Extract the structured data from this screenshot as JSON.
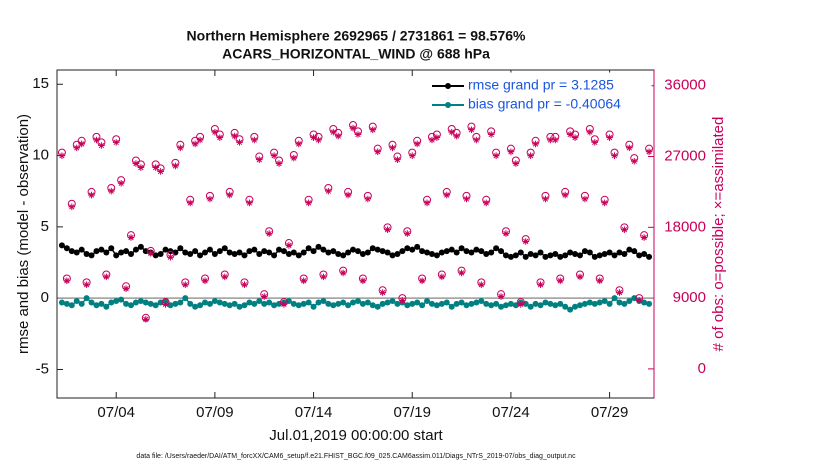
{
  "chart_data": {
    "type": "line",
    "title": "Northern Hemisphere 2692965 / 2731861 = 98.576%",
    "subtitle": "ACARS_HORIZONTAL_WIND @ 688 hPa",
    "xlabel": "Jul.01,2019 00:00:00 start",
    "ylabel": "rmse and bias (model - observation)",
    "y2label": "# of obs: o=possible; ×=assimilated",
    "footnote": "data file: /Users/raeder/DAI/ATM_forcXX/CAM6_setup/f.e21.FHIST_BGC.f09_025.CAM6assim.011/Diags_NTrS_2019-07/obs_diag_output.nc",
    "xlim": [
      0,
      30.25
    ],
    "xticks": [
      {
        "value": 3,
        "label": "07/04"
      },
      {
        "value": 8,
        "label": "07/09"
      },
      {
        "value": 13,
        "label": "07/14"
      },
      {
        "value": 18,
        "label": "07/19"
      },
      {
        "value": 23,
        "label": "07/24"
      },
      {
        "value": 28,
        "label": "07/29"
      }
    ],
    "ylim": [
      -7,
      16
    ],
    "yticks": [
      -5,
      0,
      5,
      10,
      15
    ],
    "y2lim": [
      -3700,
      38000
    ],
    "y2ticks": [
      0,
      9000,
      18000,
      27000,
      36000
    ],
    "y2color": "#c8005a",
    "zero_line": true,
    "legend": "upper right",
    "x": [
      0.25,
      0.5,
      0.75,
      1,
      1.25,
      1.5,
      1.75,
      2,
      2.25,
      2.5,
      2.75,
      3,
      3.25,
      3.5,
      3.75,
      4,
      4.25,
      4.5,
      4.75,
      5,
      5.25,
      5.5,
      5.75,
      6,
      6.25,
      6.5,
      6.75,
      7,
      7.25,
      7.5,
      7.75,
      8,
      8.25,
      8.5,
      8.75,
      9,
      9.25,
      9.5,
      9.75,
      10,
      10.25,
      10.5,
      10.75,
      11,
      11.25,
      11.5,
      11.75,
      12,
      12.25,
      12.5,
      12.75,
      13,
      13.25,
      13.5,
      13.75,
      14,
      14.25,
      14.5,
      14.75,
      15,
      15.25,
      15.5,
      15.75,
      16,
      16.25,
      16.5,
      16.75,
      17,
      17.25,
      17.5,
      17.75,
      18,
      18.25,
      18.5,
      18.75,
      19,
      19.25,
      19.5,
      19.75,
      20,
      20.25,
      20.5,
      20.75,
      21,
      21.25,
      21.5,
      21.75,
      22,
      22.25,
      22.5,
      22.75,
      23,
      23.25,
      23.5,
      23.75,
      24,
      24.25,
      24.5,
      24.75,
      25,
      25.25,
      25.5,
      25.75,
      26,
      26.25,
      26.5,
      26.75,
      27,
      27.25,
      27.5,
      27.75,
      28,
      28.25,
      28.5,
      28.75,
      29,
      29.25,
      29.5,
      29.75,
      30
    ],
    "series": [
      {
        "name": "rmse grand pr = 3.1285",
        "color": "#000000",
        "marker": "dot",
        "line": true,
        "legend": true,
        "values": [
          3.7,
          3.5,
          3.3,
          3.2,
          3.4,
          3.1,
          3.0,
          3.3,
          3.4,
          3.2,
          3.5,
          3.0,
          3.2,
          3.3,
          3.1,
          3.4,
          3.6,
          3.3,
          3.2,
          3.0,
          3.1,
          3.4,
          3.3,
          3.2,
          3.5,
          3.2,
          3.1,
          3.3,
          3.0,
          3.2,
          3.4,
          3.1,
          3.3,
          3.5,
          3.2,
          3.1,
          3.2,
          3.0,
          3.3,
          3.4,
          3.1,
          3.3,
          3.2,
          3.0,
          3.4,
          3.3,
          3.1,
          3.2,
          3.0,
          3.2,
          3.5,
          3.3,
          3.6,
          3.4,
          3.2,
          3.3,
          3.1,
          3.0,
          3.2,
          3.4,
          3.3,
          3.1,
          3.2,
          3.5,
          3.4,
          3.3,
          3.2,
          3.0,
          3.1,
          3.3,
          3.5,
          3.4,
          3.6,
          3.3,
          3.2,
          3.1,
          3.0,
          3.2,
          3.3,
          3.4,
          3.2,
          3.5,
          3.3,
          3.2,
          3.4,
          3.3,
          3.1,
          3.2,
          3.5,
          3.3,
          3.0,
          2.9,
          3.0,
          3.2,
          2.9,
          3.1,
          3.0,
          3.2,
          2.9,
          3.0,
          3.1,
          2.9,
          3.0,
          3.2,
          3.1,
          3.0,
          3.3,
          3.2,
          2.9,
          3.0,
          3.1,
          3.2,
          3.0,
          3.2,
          3.1,
          3.4,
          3.3,
          3.0,
          3.1,
          2.9
        ]
      },
      {
        "name": "bias grand pr = -0.40064",
        "color": "#008080",
        "marker": "dot",
        "line": true,
        "legend": true,
        "values": [
          -0.3,
          -0.4,
          -0.5,
          -0.2,
          -0.4,
          0.0,
          -0.3,
          -0.5,
          -0.4,
          -0.6,
          -0.3,
          -0.2,
          -0.1,
          -0.4,
          -0.5,
          -0.3,
          -0.2,
          -0.3,
          -0.4,
          -0.5,
          -0.3,
          -0.2,
          -0.5,
          -0.4,
          -0.3,
          0.0,
          -0.4,
          -0.6,
          -0.5,
          -0.3,
          -0.4,
          -0.2,
          -0.3,
          -0.4,
          -0.5,
          -0.4,
          -0.6,
          -0.5,
          -0.3,
          -0.4,
          -0.2,
          -0.4,
          -0.3,
          -0.5,
          -0.4,
          -0.3,
          -0.2,
          -0.4,
          -0.5,
          -0.4,
          -0.3,
          -0.6,
          -0.3,
          -0.2,
          -0.4,
          -0.5,
          -0.4,
          -0.3,
          -0.5,
          -0.3,
          -0.2,
          -0.4,
          -0.3,
          -0.5,
          -0.6,
          -0.4,
          -0.3,
          -0.2,
          -0.4,
          -0.3,
          -0.5,
          -0.4,
          -0.3,
          -0.5,
          -0.2,
          -0.4,
          -0.5,
          -0.4,
          -0.3,
          -0.6,
          -0.4,
          -0.3,
          -0.5,
          -0.4,
          -0.3,
          -0.2,
          -0.4,
          -0.5,
          -0.4,
          -0.6,
          -0.5,
          -0.4,
          -0.5,
          -0.3,
          -0.4,
          -0.6,
          -0.4,
          -0.5,
          -0.3,
          -0.4,
          -0.5,
          -0.4,
          -0.6,
          -0.8,
          -0.6,
          -0.5,
          -0.4,
          -0.3,
          -0.4,
          -0.3,
          -0.2,
          -0.4,
          0.0,
          -0.3,
          -0.4,
          -0.2,
          0.0,
          -0.2,
          -0.3,
          -0.4
        ]
      },
      {
        "name": "possible",
        "color": "#c8005a",
        "marker": "circle",
        "line": false,
        "legend": false,
        "axis": "y2",
        "values": [
          27500,
          11500,
          21000,
          28500,
          29000,
          11000,
          22500,
          29500,
          28800,
          12000,
          23000,
          29200,
          24000,
          10500,
          17000,
          26500,
          26000,
          6500,
          15000,
          26000,
          25500,
          8500,
          14500,
          26200,
          28500,
          11000,
          21500,
          29000,
          29500,
          11500,
          22000,
          30500,
          29800,
          12000,
          22500,
          30000,
          29200,
          11000,
          21500,
          29500,
          27000,
          9500,
          17500,
          27500,
          26500,
          8500,
          16000,
          27200,
          29000,
          11500,
          21500,
          29800,
          29500,
          12000,
          23000,
          30500,
          30000,
          12500,
          22500,
          31000,
          30200,
          11500,
          22000,
          30800,
          28000,
          10000,
          18000,
          28500,
          27000,
          9000,
          17500,
          27500,
          29000,
          11500,
          21500,
          29500,
          29800,
          12000,
          22500,
          30500,
          30000,
          12500,
          22000,
          30800,
          29500,
          11000,
          21500,
          30200,
          27500,
          9500,
          17500,
          28000,
          26500,
          8500,
          16500,
          27500,
          29000,
          11000,
          22000,
          29500,
          29500,
          11500,
          22500,
          30200,
          29800,
          12000,
          22000,
          30500,
          29200,
          11500,
          21500,
          29800,
          27500,
          10000,
          18000,
          28500,
          26800,
          9000,
          17000,
          28000
        ]
      },
      {
        "name": "assimilated",
        "color": "#c8005a",
        "marker": "asterisk",
        "line": false,
        "legend": false,
        "axis": "y2",
        "values": [
          27100,
          11200,
          20600,
          28100,
          28600,
          10700,
          22100,
          29100,
          28400,
          11700,
          22600,
          28800,
          23600,
          10200,
          16700,
          26100,
          25600,
          6300,
          14700,
          25600,
          25100,
          8200,
          14200,
          25800,
          28100,
          10700,
          21100,
          28600,
          29100,
          11200,
          21600,
          30100,
          29400,
          11700,
          22100,
          29600,
          28800,
          10700,
          21100,
          29100,
          26600,
          9200,
          17200,
          27100,
          26100,
          8200,
          15700,
          26800,
          28600,
          11200,
          21100,
          29400,
          29100,
          11700,
          22600,
          30100,
          29600,
          12200,
          22100,
          30600,
          29800,
          11200,
          21600,
          30400,
          27600,
          9700,
          17700,
          28100,
          26600,
          8700,
          17200,
          27100,
          28600,
          11200,
          21100,
          29100,
          29400,
          11700,
          22100,
          30100,
          29600,
          12200,
          21600,
          30400,
          29100,
          10700,
          21100,
          29800,
          27100,
          9200,
          17200,
          27600,
          26100,
          8200,
          16200,
          27100,
          28600,
          10700,
          21600,
          29100,
          29100,
          11200,
          22100,
          29800,
          29400,
          11700,
          21600,
          30100,
          28800,
          11200,
          21100,
          29400,
          27100,
          9700,
          17700,
          28100,
          26400,
          8700,
          16700,
          27600
        ]
      }
    ]
  }
}
